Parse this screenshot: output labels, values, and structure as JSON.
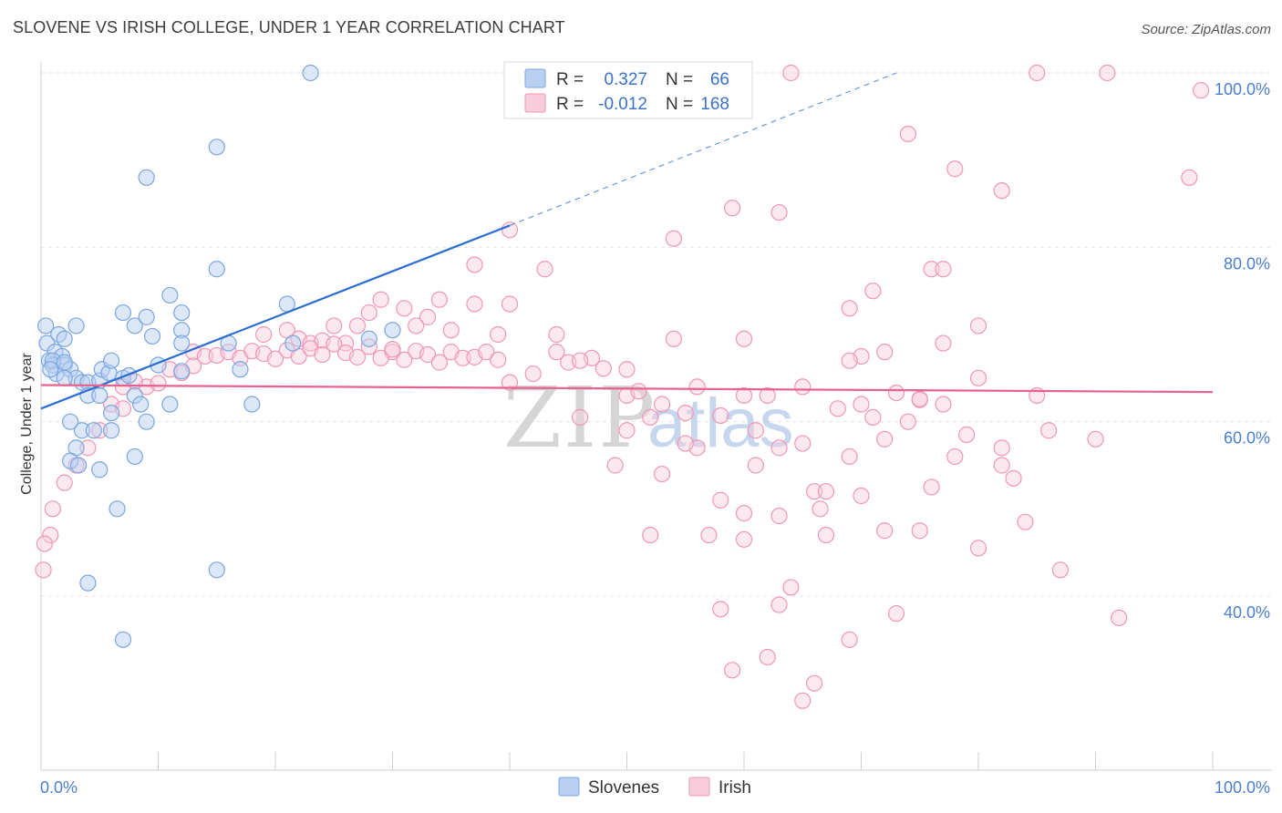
{
  "title": "SLOVENE VS IRISH COLLEGE, UNDER 1 YEAR CORRELATION CHART",
  "source": "Source: ZipAtlas.com",
  "watermark": {
    "zip": "ZIP",
    "atlas": "atlas"
  },
  "colors": {
    "slovenes": "#7aa6e0",
    "slovenes_fill": "#b9d0f1",
    "slovenes_line": "#2a6dcf",
    "irish": "#ef97b4",
    "irish_fill": "#f8cddb",
    "irish_line": "#e8628e",
    "grid": "#e2e2e2",
    "label_blue": "#4a7fd0"
  },
  "legend": {
    "r_label": "R =",
    "n_label": "N =",
    "slovenes": {
      "r": "0.327",
      "n": "66"
    },
    "irish": {
      "r": "-0.012",
      "n": "168"
    }
  },
  "bottom_legend": {
    "slovenes": "Slovenes",
    "irish": "Irish"
  },
  "chart_data": {
    "type": "scatter",
    "title": "SLOVENE VS IRISH COLLEGE, UNDER 1 YEAR CORRELATION CHART",
    "xlabel": "",
    "ylabel": "College, Under 1 year",
    "xlim": [
      0,
      100
    ],
    "ylim": [
      20,
      102
    ],
    "x_tick_labels": [
      "0.0%",
      "100.0%"
    ],
    "y_tick_labels": [
      "40.0%",
      "60.0%",
      "80.0%",
      "100.0%"
    ],
    "y_ticks": [
      40,
      60,
      80,
      100
    ],
    "legend_position": "top-center",
    "series": [
      {
        "name": "Slovenes",
        "r": 0.327,
        "n": 66,
        "trend": {
          "x0": 0,
          "y0": 61.5,
          "x1": 40,
          "y1": 82.5,
          "x_dash_end": 73,
          "y_dash_end": 100
        },
        "points": [
          [
            23,
            100
          ],
          [
            15,
            91.5
          ],
          [
            9,
            88
          ],
          [
            15,
            77.5
          ],
          [
            21,
            73.5
          ],
          [
            11,
            74.5
          ],
          [
            3,
            71
          ],
          [
            7,
            72.5
          ],
          [
            8,
            71
          ],
          [
            9,
            72
          ],
          [
            12,
            72.5
          ],
          [
            12,
            70.5
          ],
          [
            0.4,
            71
          ],
          [
            1.5,
            70
          ],
          [
            2,
            69.5
          ],
          [
            0.5,
            69
          ],
          [
            1.2,
            68
          ],
          [
            1.8,
            67.5
          ],
          [
            0.7,
            67
          ],
          [
            1,
            66.5
          ],
          [
            2,
            66.5
          ],
          [
            2.5,
            66
          ],
          [
            1.3,
            65.5
          ],
          [
            3,
            65
          ],
          [
            3.5,
            64.5
          ],
          [
            4,
            64.5
          ],
          [
            5,
            64.7
          ],
          [
            5.2,
            66
          ],
          [
            5.8,
            65.6
          ],
          [
            7,
            65
          ],
          [
            7.5,
            65.3
          ],
          [
            12,
            65.8
          ],
          [
            4,
            63
          ],
          [
            5,
            63
          ],
          [
            8,
            63
          ],
          [
            8.5,
            62
          ],
          [
            11,
            62
          ],
          [
            18,
            62
          ],
          [
            6,
            61
          ],
          [
            3.5,
            59
          ],
          [
            4.5,
            59
          ],
          [
            6,
            59
          ],
          [
            3,
            57
          ],
          [
            8,
            56
          ],
          [
            2.5,
            55.5
          ],
          [
            5,
            54.5
          ],
          [
            6.5,
            50
          ],
          [
            4,
            41.5
          ],
          [
            15,
            43
          ],
          [
            7,
            35
          ],
          [
            12,
            69
          ],
          [
            16,
            69
          ],
          [
            17,
            66
          ],
          [
            10,
            66.5
          ],
          [
            2,
            65
          ],
          [
            1,
            67
          ],
          [
            2.5,
            60
          ],
          [
            3.2,
            55
          ],
          [
            9,
            60
          ],
          [
            30,
            70.5
          ],
          [
            28,
            69.5
          ],
          [
            21.5,
            69
          ],
          [
            0.8,
            66
          ],
          [
            2,
            66.8
          ],
          [
            6,
            67
          ],
          [
            9.5,
            69.8
          ]
        ]
      },
      {
        "name": "Irish",
        "r": -0.012,
        "n": 168,
        "trend": {
          "x0": 0,
          "y0": 64.2,
          "x1": 100,
          "y1": 63.4
        },
        "points": [
          [
            64,
            100
          ],
          [
            85,
            100
          ],
          [
            91,
            100
          ],
          [
            99,
            98
          ],
          [
            74,
            93
          ],
          [
            78,
            89
          ],
          [
            82,
            86.5
          ],
          [
            98,
            88
          ],
          [
            59,
            84.5
          ],
          [
            63,
            84
          ],
          [
            40,
            82
          ],
          [
            54,
            81
          ],
          [
            37,
            78
          ],
          [
            43,
            77.5
          ],
          [
            76,
            77.5
          ],
          [
            77,
            77.5
          ],
          [
            71,
            75
          ],
          [
            34,
            74
          ],
          [
            37,
            73.5
          ],
          [
            29,
            74
          ],
          [
            40,
            73.5
          ],
          [
            31,
            73
          ],
          [
            28,
            72.5
          ],
          [
            33,
            72
          ],
          [
            69,
            73
          ],
          [
            80,
            71
          ],
          [
            25,
            71
          ],
          [
            21,
            70.5
          ],
          [
            27,
            71
          ],
          [
            32,
            71
          ],
          [
            35,
            70.5
          ],
          [
            39,
            70
          ],
          [
            22,
            69.5
          ],
          [
            19,
            70
          ],
          [
            23,
            69
          ],
          [
            24,
            69.3
          ],
          [
            26,
            69
          ],
          [
            30,
            68
          ],
          [
            54,
            69.5
          ],
          [
            60,
            69.5
          ],
          [
            77,
            69
          ],
          [
            72,
            68
          ],
          [
            13,
            68
          ],
          [
            14,
            67.5
          ],
          [
            15,
            67.6
          ],
          [
            16,
            68
          ],
          [
            17,
            67.3
          ],
          [
            18,
            68.1
          ],
          [
            19,
            67.8
          ],
          [
            20,
            67.2
          ],
          [
            21,
            68.2
          ],
          [
            22,
            67.5
          ],
          [
            23,
            68.4
          ],
          [
            24,
            67.7
          ],
          [
            25,
            68.9
          ],
          [
            26,
            67.9
          ],
          [
            27,
            67.4
          ],
          [
            28,
            68.6
          ],
          [
            29,
            67.3
          ],
          [
            30,
            68.3
          ],
          [
            31,
            67.1
          ],
          [
            32,
            68.1
          ],
          [
            33,
            67.7
          ],
          [
            34,
            66.8
          ],
          [
            35,
            68.0
          ],
          [
            36,
            67.3
          ],
          [
            37,
            67.4
          ],
          [
            38,
            68.0
          ],
          [
            39,
            67.1
          ],
          [
            44,
            68
          ],
          [
            45,
            66.8
          ],
          [
            47,
            67.3
          ],
          [
            48,
            66.1
          ],
          [
            50,
            66
          ],
          [
            70,
            67.5
          ],
          [
            69,
            67
          ],
          [
            11,
            66
          ],
          [
            12,
            65.6
          ],
          [
            13,
            66.4
          ],
          [
            9,
            64
          ],
          [
            10,
            64.4
          ],
          [
            8,
            64.6
          ],
          [
            7,
            64
          ],
          [
            6,
            62
          ],
          [
            7,
            61.5
          ],
          [
            50,
            63
          ],
          [
            60,
            63
          ],
          [
            65,
            64
          ],
          [
            70,
            62
          ],
          [
            73,
            63.3
          ],
          [
            75,
            62.5
          ],
          [
            80,
            65
          ],
          [
            85,
            63
          ],
          [
            55,
            61
          ],
          [
            52,
            60.5
          ],
          [
            58,
            60.7
          ],
          [
            61,
            59
          ],
          [
            68,
            61.5
          ],
          [
            71,
            60.5
          ],
          [
            74,
            60
          ],
          [
            77,
            62
          ],
          [
            79,
            58.5
          ],
          [
            82,
            57
          ],
          [
            86,
            59
          ],
          [
            90,
            58
          ],
          [
            56,
            57
          ],
          [
            61,
            55
          ],
          [
            65,
            57.5
          ],
          [
            78,
            56
          ],
          [
            82,
            55
          ],
          [
            83,
            53.5
          ],
          [
            66,
            52
          ],
          [
            70,
            51.5
          ],
          [
            76,
            52.5
          ],
          [
            58,
            51
          ],
          [
            50,
            59
          ],
          [
            55,
            57.5
          ],
          [
            60,
            49.5
          ],
          [
            63,
            49.2
          ],
          [
            52,
            47
          ],
          [
            57,
            47
          ],
          [
            60,
            46.5
          ],
          [
            67,
            47
          ],
          [
            72,
            47.5
          ],
          [
            75,
            47.5
          ],
          [
            80,
            45.5
          ],
          [
            5,
            59
          ],
          [
            4,
            57
          ],
          [
            3,
            55
          ],
          [
            2,
            53
          ],
          [
            1,
            50
          ],
          [
            0.8,
            47
          ],
          [
            0.3,
            46
          ],
          [
            0.2,
            43
          ],
          [
            84,
            48.5
          ],
          [
            87,
            43
          ],
          [
            64,
            41
          ],
          [
            63,
            39
          ],
          [
            58,
            38.5
          ],
          [
            92,
            37.5
          ],
          [
            69,
            35
          ],
          [
            62,
            33
          ],
          [
            59,
            31.5
          ],
          [
            66,
            30
          ],
          [
            65,
            28
          ],
          [
            73,
            38
          ],
          [
            66.5,
            50
          ],
          [
            63,
            57
          ],
          [
            44,
            70
          ],
          [
            46,
            67
          ],
          [
            40,
            64.5
          ],
          [
            42,
            65.5
          ],
          [
            53,
            62
          ],
          [
            56,
            64
          ],
          [
            67,
            52
          ],
          [
            69,
            56
          ],
          [
            46,
            60.5
          ],
          [
            49,
            55
          ],
          [
            53,
            54
          ],
          [
            72,
            58
          ],
          [
            75,
            62.6
          ],
          [
            51,
            63.5
          ],
          [
            62,
            63
          ]
        ]
      }
    ]
  }
}
